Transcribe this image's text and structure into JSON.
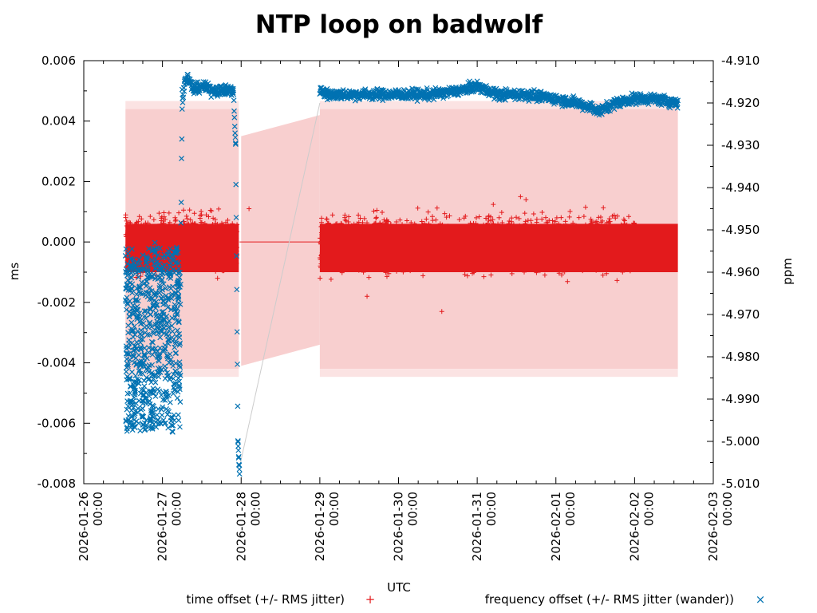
{
  "chart_data": {
    "type": "scatter",
    "title": "NTP loop on badwolf",
    "xlabel": "UTC",
    "ylabel": "ms",
    "y2label": "ppm",
    "xlim": [
      "2026-01-26 00:00",
      "2026-02-03 00:00"
    ],
    "ylim": [
      -0.008,
      0.006
    ],
    "y2lim": [
      -5.01,
      -4.91
    ],
    "x_ticks": [
      "2026-01-26 00:00",
      "2026-01-27 00:00",
      "2026-01-28 00:00",
      "2026-01-29 00:00",
      "2026-01-30 00:00",
      "2026-01-31 00:00",
      "2026-02-01 00:00",
      "2026-02-02 00:00",
      "2026-02-03 00:00"
    ],
    "y_ticks": [
      "0.006",
      "0.004",
      "0.002",
      "0.000",
      "-0.002",
      "-0.004",
      "-0.006",
      "-0.008"
    ],
    "y2_ticks": [
      "-4.910",
      "-4.920",
      "-4.930",
      "-4.940",
      "-4.950",
      "-4.960",
      "-4.970",
      "-4.980",
      "-4.990",
      "-5.000",
      "-5.010"
    ],
    "legend": {
      "position": "bottom",
      "entries": [
        {
          "label": "time offset (+/- RMS jitter)",
          "marker": "+",
          "color": "#e31a1c"
        },
        {
          "label": "frequency offset (+/- RMS jitter (wander))",
          "marker": "×",
          "color": "#0072b2"
        }
      ]
    },
    "series": [
      {
        "name": "time offset (+/- RMS jitter)",
        "axis": "y",
        "unit": "ms",
        "color": "#e31a1c",
        "points": [
          [
            0.53,
            0.0
          ],
          [
            0.75,
            -0.0002
          ],
          [
            1.0,
            0.0001
          ],
          [
            1.25,
            -0.0001
          ],
          [
            1.5,
            0.0002
          ],
          [
            1.75,
            -0.0002
          ],
          [
            1.95,
            -0.0001
          ],
          [
            3.0,
            -0.0002
          ],
          [
            3.25,
            0.0001
          ],
          [
            3.5,
            -0.0001
          ],
          [
            3.75,
            0.0
          ],
          [
            4.0,
            -0.0002
          ],
          [
            4.25,
            0.0001
          ],
          [
            4.5,
            -0.0001
          ],
          [
            4.75,
            0.0
          ],
          [
            5.0,
            -0.0002
          ],
          [
            5.25,
            0.0001
          ],
          [
            5.5,
            -0.0001
          ],
          [
            5.75,
            0.0
          ],
          [
            6.0,
            -0.0002
          ],
          [
            6.25,
            0.0001
          ],
          [
            6.5,
            -0.0001
          ],
          [
            6.75,
            0.0
          ],
          [
            7.0,
            -0.0002
          ],
          [
            7.55,
            -0.0001
          ]
        ],
        "outliers": [
          [
            0.92,
            -0.0011
          ],
          [
            1.7,
            -0.0012
          ],
          [
            3.6,
            -0.0018
          ],
          [
            3.85,
            0.0007
          ],
          [
            4.55,
            -0.0023
          ],
          [
            5.55,
            0.0015
          ],
          [
            5.62,
            0.0014
          ],
          [
            2.1,
            0.0011
          ]
        ],
        "jitter_band": {
          "y_min": -0.0042,
          "y_max": 0.0044
        }
      },
      {
        "name": "frequency offset (+/- RMS jitter (wander))",
        "axis": "y2",
        "unit": "ppm",
        "color": "#0072b2",
        "points": [
          [
            0.53,
            -4.957
          ],
          [
            0.55,
            -4.995
          ],
          [
            0.6,
            -4.955
          ],
          [
            0.65,
            -4.99
          ],
          [
            0.7,
            -4.962
          ],
          [
            0.75,
            -4.993
          ],
          [
            0.8,
            -4.958
          ],
          [
            0.85,
            -4.997
          ],
          [
            0.9,
            -4.954
          ],
          [
            0.95,
            -4.985
          ],
          [
            1.0,
            -4.96
          ],
          [
            1.05,
            -4.992
          ],
          [
            1.1,
            -4.956
          ],
          [
            1.15,
            -4.99
          ],
          [
            1.2,
            -4.962
          ],
          [
            1.22,
            -4.985
          ],
          [
            1.25,
            -4.92
          ],
          [
            1.28,
            -4.915
          ],
          [
            1.32,
            -4.914
          ],
          [
            1.4,
            -4.917
          ],
          [
            1.5,
            -4.916
          ],
          [
            1.6,
            -4.917
          ],
          [
            1.7,
            -4.917
          ],
          [
            1.8,
            -4.917
          ],
          [
            1.9,
            -4.917
          ],
          [
            1.93,
            -4.93
          ],
          [
            1.96,
            -5.0
          ],
          [
            1.98,
            -5.008
          ],
          [
            3.0,
            -4.917
          ],
          [
            3.1,
            -4.918
          ],
          [
            3.5,
            -4.918
          ],
          [
            3.8,
            -4.918
          ],
          [
            4.0,
            -4.918
          ],
          [
            4.4,
            -4.918
          ],
          [
            4.8,
            -4.917
          ],
          [
            5.0,
            -4.916
          ],
          [
            5.25,
            -4.918
          ],
          [
            5.6,
            -4.918
          ],
          [
            6.0,
            -4.919
          ],
          [
            6.25,
            -4.92
          ],
          [
            6.45,
            -4.921
          ],
          [
            6.55,
            -4.922
          ],
          [
            6.75,
            -4.92
          ],
          [
            7.0,
            -4.919
          ],
          [
            7.25,
            -4.919
          ],
          [
            7.55,
            -4.92
          ]
        ],
        "jitter_band": {
          "y_min": -4.985,
          "y_max": -4.92
        }
      }
    ]
  }
}
